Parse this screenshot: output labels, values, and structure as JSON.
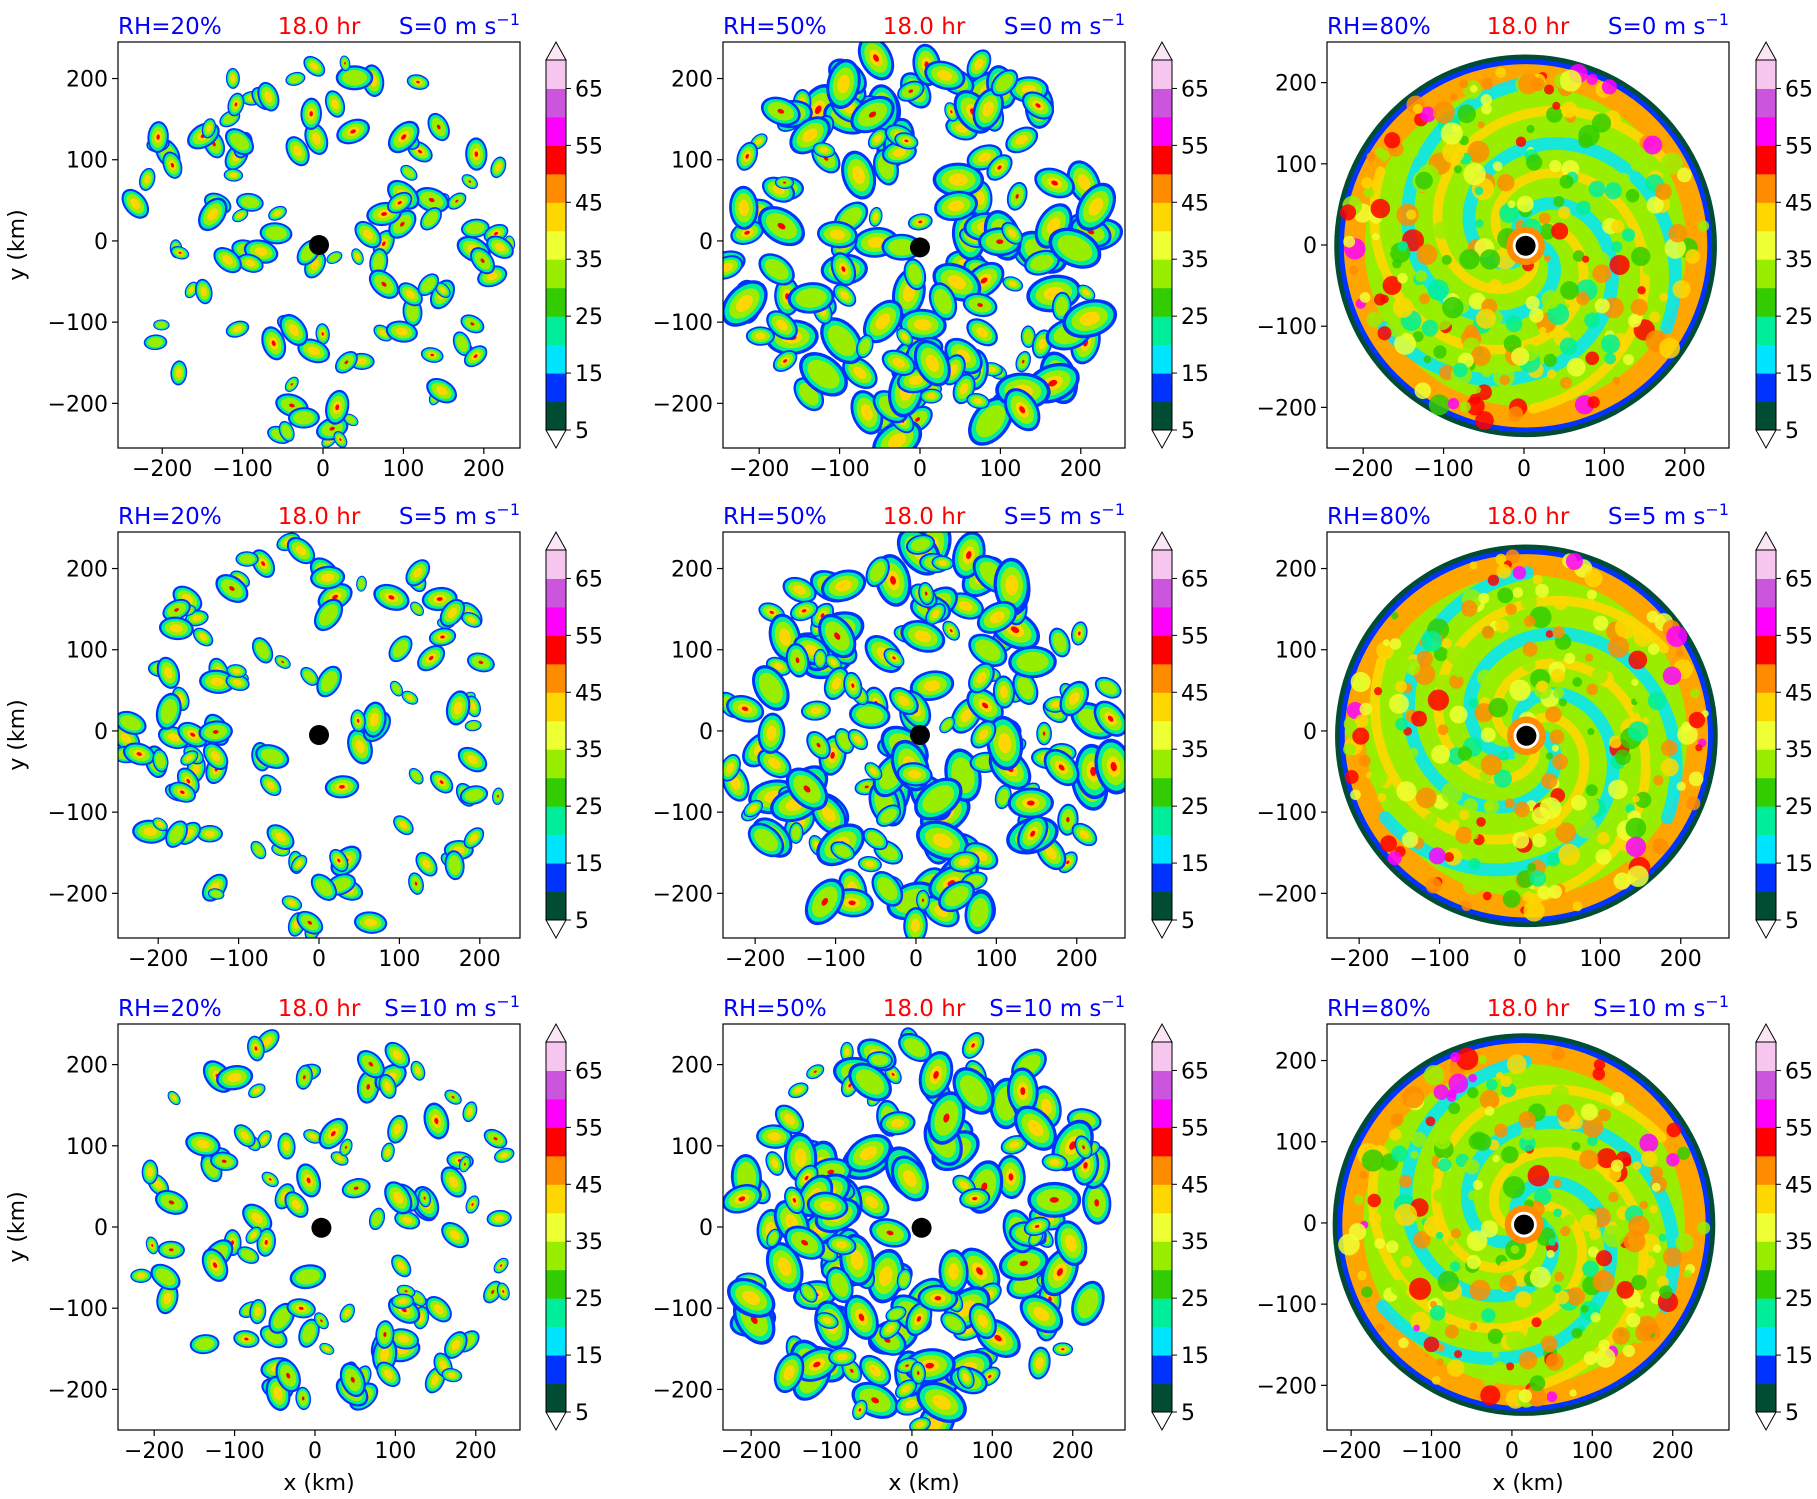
{
  "figure": {
    "time_label": "18.0 hr",
    "xlabel": "x (km)",
    "ylabel": "y (km)",
    "colors": {
      "title_blue": "#0000ff",
      "title_red": "#ff0000",
      "center_marker": "#000000"
    }
  },
  "colorbar": {
    "tick_labels": [
      "5",
      "15",
      "25",
      "35",
      "45",
      "55",
      "65"
    ],
    "levels": [
      5,
      10,
      15,
      20,
      25,
      30,
      35,
      40,
      45,
      50,
      55,
      60,
      65,
      70
    ],
    "colors": [
      "#004d33",
      "#0033ff",
      "#00e5ff",
      "#00ee99",
      "#33cc00",
      "#99ee00",
      "#eeff33",
      "#ffd700",
      "#ff8c00",
      "#ff0000",
      "#ff00ff",
      "#cc55dd",
      "#f6c6ee"
    ],
    "extend": "both"
  },
  "chart_data": [
    {
      "type": "heatmap",
      "rh_label": "RH=20%",
      "time_label": "18.0 hr",
      "shear_label": "S=0 m s",
      "shear_exp": "−1",
      "xlim": [
        -255,
        245
      ],
      "ylim": [
        -255,
        245
      ],
      "xticks": [
        "−200",
        "−100",
        "0",
        "100",
        "200"
      ],
      "yticks": [
        "−200",
        "−100",
        "0",
        "100",
        "200"
      ],
      "center": {
        "x": -5,
        "y": -5
      },
      "rh": 20
    },
    {
      "type": "heatmap",
      "rh_label": "RH=50%",
      "time_label": "18.0 hr",
      "shear_label": "S=0 m s",
      "shear_exp": "−1",
      "xlim": [
        -245,
        255
      ],
      "ylim": [
        -255,
        245
      ],
      "xticks": [
        "−200",
        "−100",
        "0",
        "100",
        "200"
      ],
      "yticks": [
        "−200",
        "−100",
        "0",
        "100",
        "200"
      ],
      "center": {
        "x": 0,
        "y": -8
      },
      "rh": 50
    },
    {
      "type": "heatmap",
      "rh_label": "RH=80%",
      "time_label": "18.0 hr",
      "shear_label": "S=0 m s",
      "shear_exp": "−1",
      "xlim": [
        -245,
        255
      ],
      "ylim": [
        -250,
        250
      ],
      "xticks": [
        "−200",
        "−100",
        "0",
        "100",
        "200"
      ],
      "yticks": [
        "−200",
        "−100",
        "0",
        "100",
        "200"
      ],
      "center": {
        "x": 2,
        "y": -1
      },
      "rh": 80
    },
    {
      "type": "heatmap",
      "rh_label": "RH=20%",
      "time_label": "18.0 hr",
      "shear_label": "S=5 m s",
      "shear_exp": "−1",
      "xlim": [
        -250,
        250
      ],
      "ylim": [
        -255,
        245
      ],
      "xticks": [
        "−200",
        "−100",
        "0",
        "100",
        "200"
      ],
      "yticks": [
        "−200",
        "−100",
        "0",
        "100",
        "200"
      ],
      "center": {
        "x": 0,
        "y": -5
      },
      "rh": 20
    },
    {
      "type": "heatmap",
      "rh_label": "RH=50%",
      "time_label": "18.0 hr",
      "shear_label": "S=5 m s",
      "shear_exp": "−1",
      "xlim": [
        -240,
        260
      ],
      "ylim": [
        -255,
        245
      ],
      "xticks": [
        "−200",
        "−100",
        "0",
        "100",
        "200"
      ],
      "yticks": [
        "−200",
        "−100",
        "0",
        "100",
        "200"
      ],
      "center": {
        "x": 5,
        "y": -5
      },
      "rh": 50
    },
    {
      "type": "heatmap",
      "rh_label": "RH=80%",
      "time_label": "18.0 hr",
      "shear_label": "S=5 m s",
      "shear_exp": "−1",
      "xlim": [
        -240,
        260
      ],
      "ylim": [
        -255,
        245
      ],
      "xticks": [
        "−200",
        "−100",
        "0",
        "100",
        "200"
      ],
      "yticks": [
        "−200",
        "−100",
        "0",
        "100",
        "200"
      ],
      "center": {
        "x": 8,
        "y": -6
      },
      "rh": 80
    },
    {
      "type": "heatmap",
      "rh_label": "RH=20%",
      "time_label": "18.0 hr",
      "shear_label": "S=10 m s",
      "shear_exp": "−1",
      "xlim": [
        -245,
        255
      ],
      "ylim": [
        -250,
        250
      ],
      "xticks": [
        "−200",
        "−100",
        "0",
        "100",
        "200"
      ],
      "yticks": [
        "−200",
        "−100",
        "0",
        "100",
        "200"
      ],
      "center": {
        "x": 8,
        "y": -1
      },
      "rh": 20
    },
    {
      "type": "heatmap",
      "rh_label": "RH=50%",
      "time_label": "18.0 hr",
      "shear_label": "S=10 m s",
      "shear_exp": "−1",
      "xlim": [
        -235,
        265
      ],
      "ylim": [
        -250,
        250
      ],
      "xticks": [
        "−200",
        "−100",
        "0",
        "100",
        "200"
      ],
      "yticks": [
        "−200",
        "−100",
        "0",
        "100",
        "200"
      ],
      "center": {
        "x": 12,
        "y": -1
      },
      "rh": 50
    },
    {
      "type": "heatmap",
      "rh_label": "RH=80%",
      "time_label": "18.0 hr",
      "shear_label": "S=10 m s",
      "shear_exp": "−1",
      "xlim": [
        -230,
        270
      ],
      "ylim": [
        -255,
        245
      ],
      "xticks": [
        "−200",
        "−100",
        "0",
        "100",
        "200"
      ],
      "yticks": [
        "−200",
        "−100",
        "0",
        "100",
        "200"
      ],
      "center": {
        "x": 15,
        "y": -2
      },
      "rh": 80
    }
  ]
}
